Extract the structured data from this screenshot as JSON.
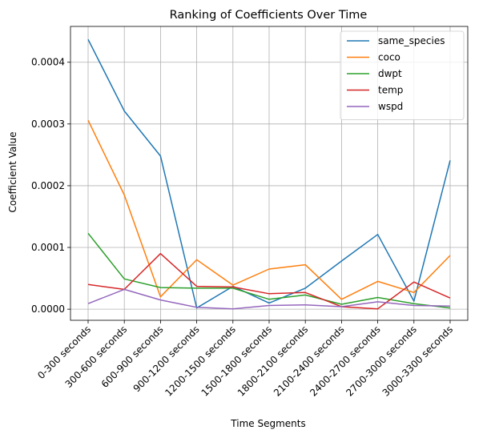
{
  "chart_data": {
    "type": "line",
    "title": "Ranking of Coefficients Over Time",
    "xlabel": "Time Segments",
    "ylabel": "Coefficient Value",
    "categories": [
      "0-300 seconds",
      "300-600 seconds",
      "600-900 seconds",
      "900-1200 seconds",
      "1200-1500 seconds",
      "1500-1800 seconds",
      "1800-2100 seconds",
      "2100-2400 seconds",
      "2400-2700 seconds",
      "2700-3000 seconds",
      "3000-3300 seconds"
    ],
    "yticks": [
      0,
      0.0001,
      0.0002,
      0.0003,
      0.0004
    ],
    "ytick_labels": [
      "0.0000",
      "0.0001",
      "0.0002",
      "0.0003",
      "0.0004"
    ],
    "ylim": [
      -1.8e-05,
      0.000458
    ],
    "grid": true,
    "legend_position": "top-right",
    "series": [
      {
        "name": "same_species",
        "color": "#1f77b4",
        "values": [
          0.000437,
          0.000321,
          0.000248,
          2e-06,
          3.7e-05,
          1e-05,
          3.4e-05,
          7.8e-05,
          0.000121,
          1.3e-05,
          0.000241
        ]
      },
      {
        "name": "coco",
        "color": "#ff7f0e",
        "values": [
          0.000306,
          0.000185,
          2e-05,
          8e-05,
          3.9e-05,
          6.5e-05,
          7.2e-05,
          1.6e-05,
          4.5e-05,
          2.7e-05,
          8.7e-05
        ]
      },
      {
        "name": "dwpt",
        "color": "#2ca02c",
        "values": [
          0.000123,
          4.9e-05,
          3.5e-05,
          3.4e-05,
          3.4e-05,
          1.6e-05,
          2.3e-05,
          8e-06,
          1.9e-05,
          9e-06,
          2e-06
        ]
      },
      {
        "name": "temp",
        "color": "#d62728",
        "values": [
          4e-05,
          3.2e-05,
          9e-05,
          3.7e-05,
          3.6e-05,
          2.5e-05,
          2.7e-05,
          4e-06,
          5e-07,
          4.4e-05,
          1.8e-05
        ]
      },
      {
        "name": "wspd",
        "color": "#9467bd",
        "values": [
          9e-06,
          3.2e-05,
          1.5e-05,
          3e-06,
          5e-07,
          6e-06,
          7e-06,
          4e-06,
          1.2e-05,
          6e-06,
          5e-06
        ]
      }
    ]
  }
}
